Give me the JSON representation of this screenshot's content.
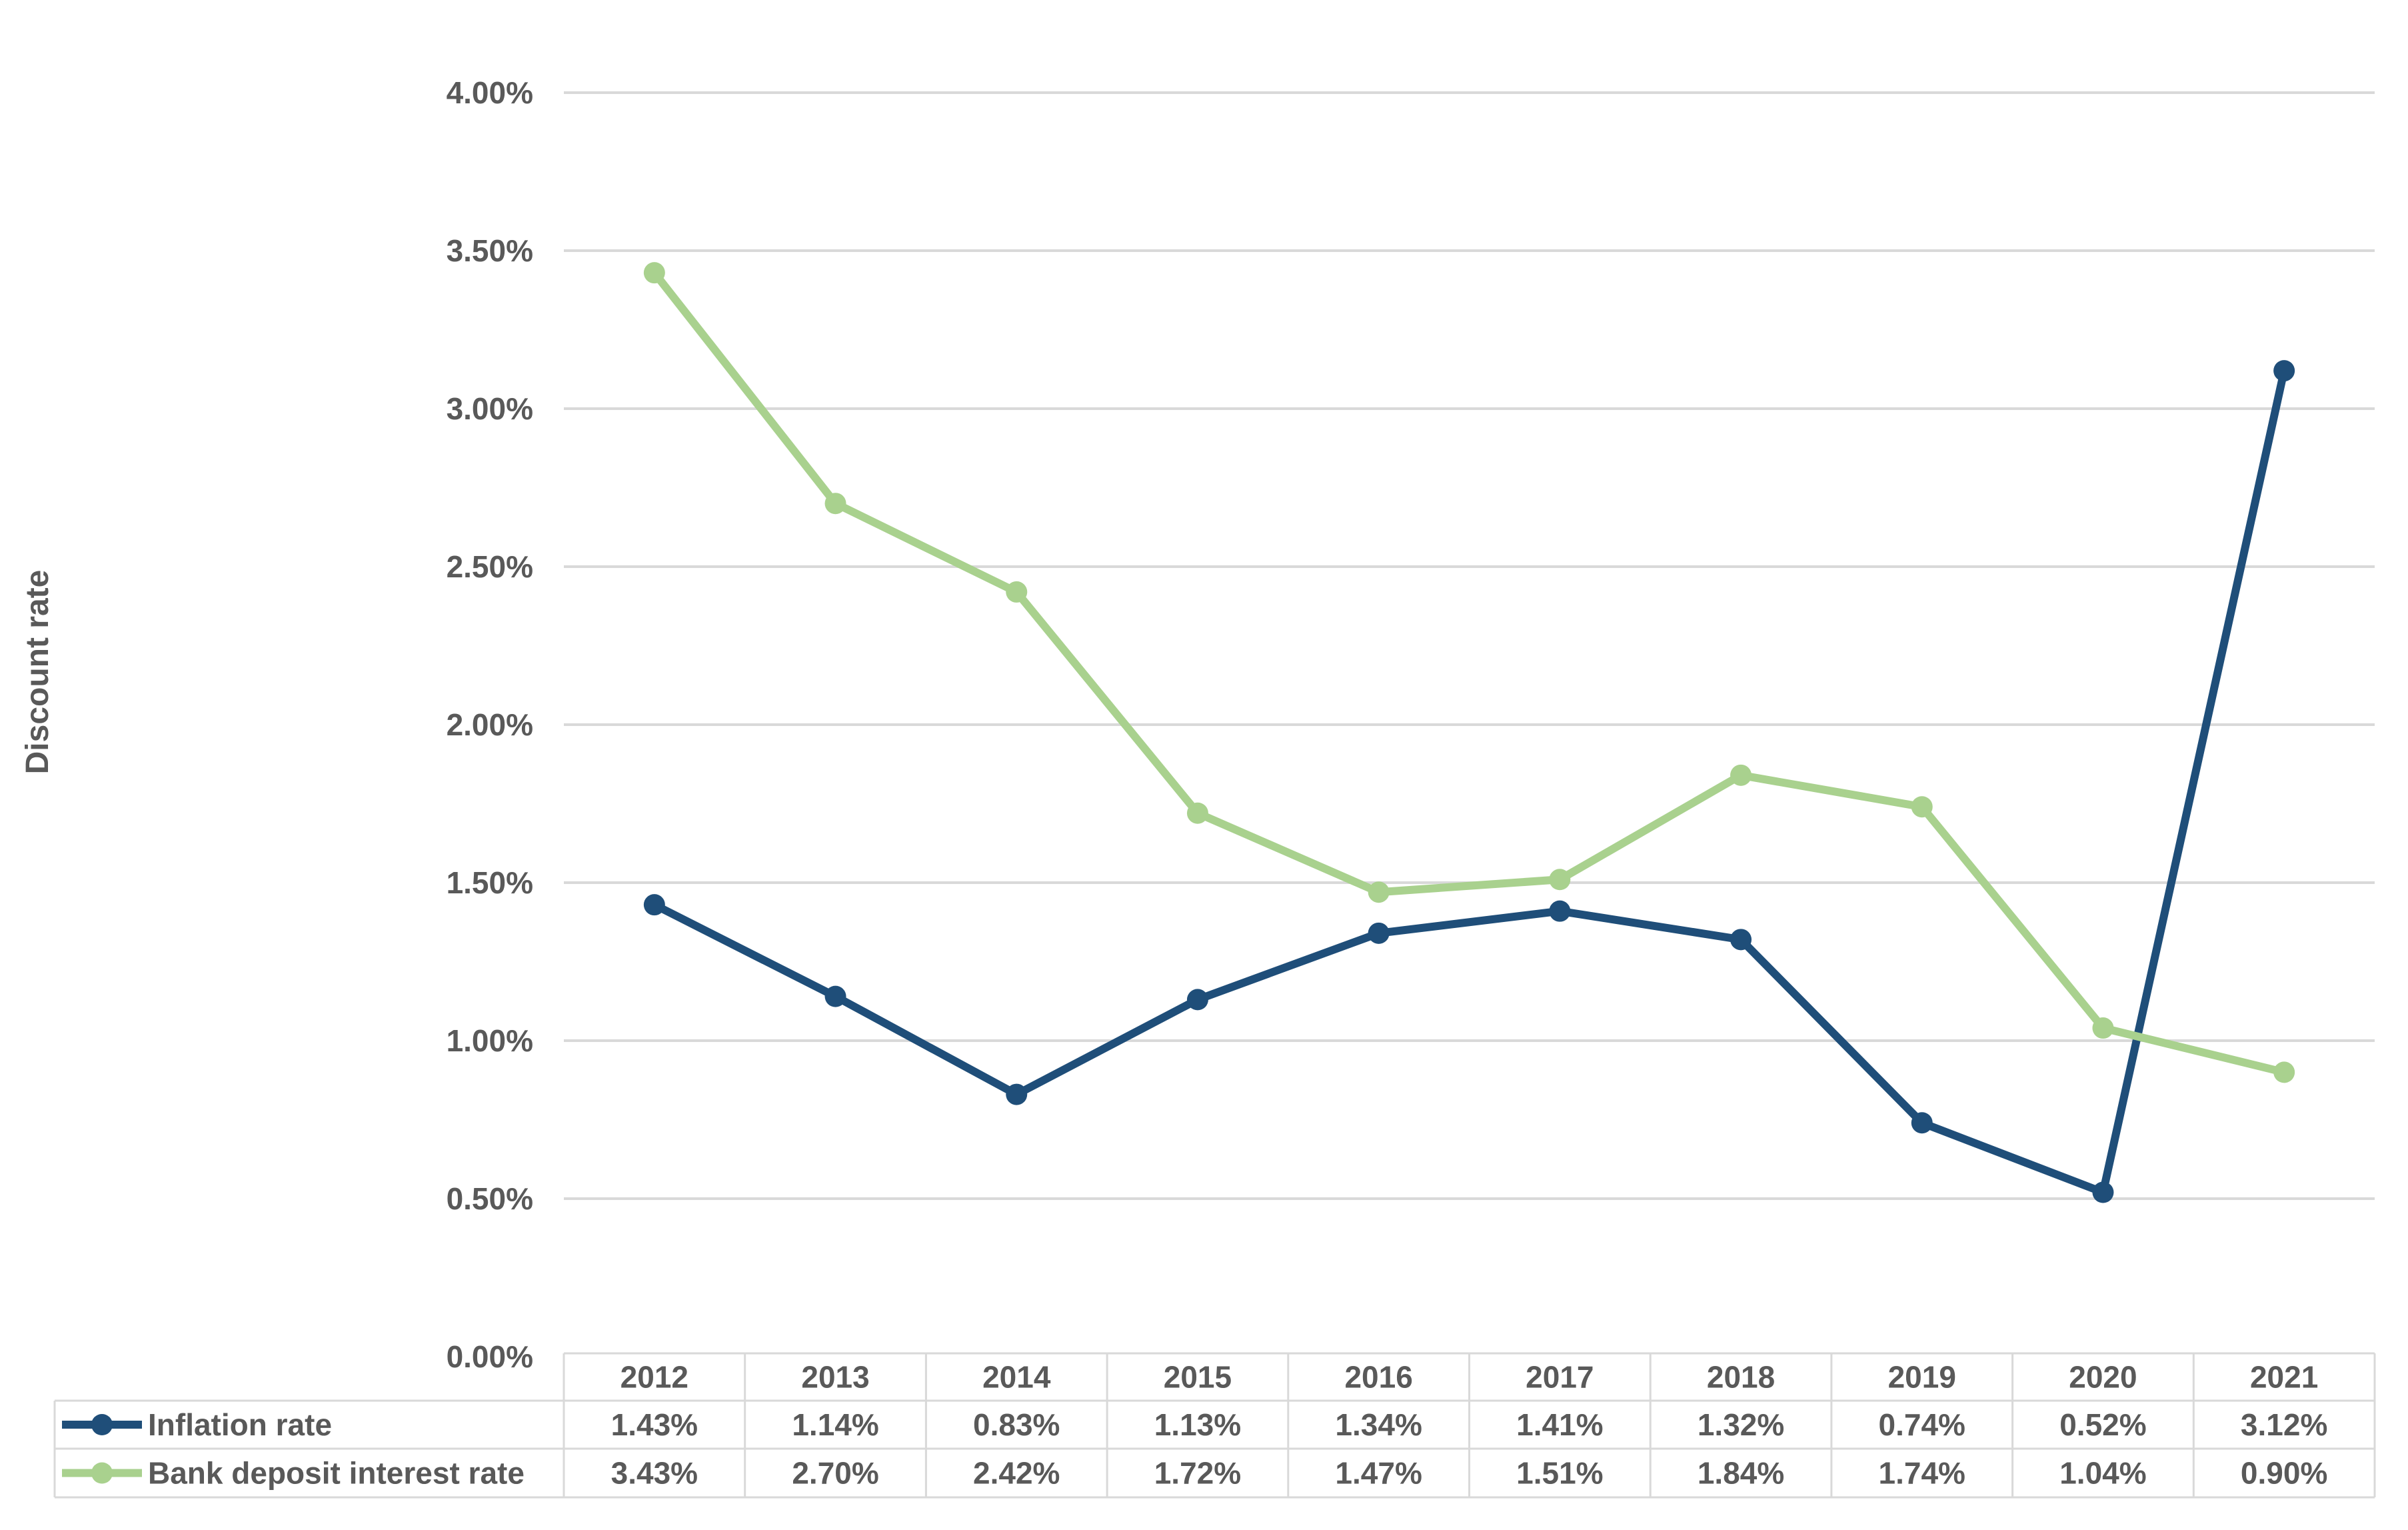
{
  "chart_data": {
    "type": "line",
    "title": "",
    "xlabel": "",
    "ylabel": "Discount rate",
    "categories": [
      "2012",
      "2013",
      "2014",
      "2015",
      "2016",
      "2017",
      "2018",
      "2019",
      "2020",
      "2021"
    ],
    "series": [
      {
        "name": "Inflation rate",
        "color": "#1F4E79",
        "values": [
          1.43,
          1.14,
          0.83,
          1.13,
          1.34,
          1.41,
          1.32,
          0.74,
          0.52,
          3.12
        ],
        "labels": [
          "1.43%",
          "1.14%",
          "0.83%",
          "1.13%",
          "1.34%",
          "1.41%",
          "1.32%",
          "0.74%",
          "0.52%",
          "3.12%"
        ]
      },
      {
        "name": "Bank deposit interest rate",
        "color": "#A9D18E",
        "values": [
          3.43,
          2.7,
          2.42,
          1.72,
          1.47,
          1.51,
          1.84,
          1.74,
          1.04,
          0.9
        ],
        "labels": [
          "3.43%",
          "2.70%",
          "2.42%",
          "1.72%",
          "1.47%",
          "1.51%",
          "1.84%",
          "1.74%",
          "1.04%",
          "0.90%"
        ]
      }
    ],
    "y_axis": {
      "min": 0,
      "max": 4,
      "step": 0.5,
      "tick_labels": [
        "0.00%",
        "0.50%",
        "1.00%",
        "1.50%",
        "2.00%",
        "2.50%",
        "3.00%",
        "3.50%",
        "4.00%"
      ]
    },
    "grid": true,
    "legend_position": "table-left",
    "marker": "circle",
    "colors": {
      "gridline": "#D9D9D9",
      "table_border": "#D9D9D9",
      "text": "#595959",
      "background": "#FFFFFF"
    }
  }
}
